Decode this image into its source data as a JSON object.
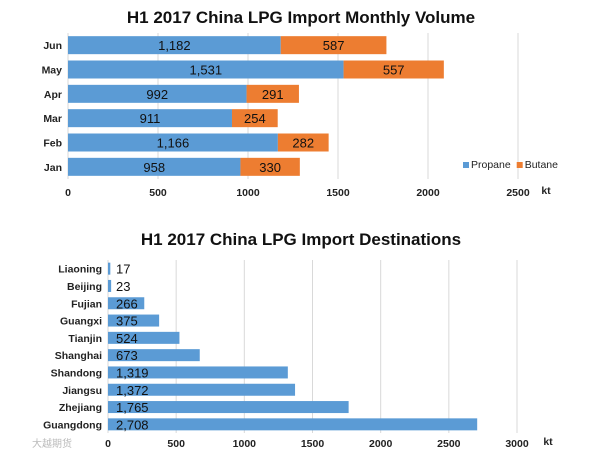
{
  "chart_data": [
    {
      "type": "bar",
      "orientation": "horizontal",
      "stacked": true,
      "title": "H1 2017 China LPG Import Monthly Volume",
      "categories": [
        "Jun",
        "May",
        "Apr",
        "Mar",
        "Feb",
        "Jan"
      ],
      "series": [
        {
          "name": "Propane",
          "values": [
            1182,
            1531,
            992,
            911,
            1166,
            958
          ],
          "labels": [
            "1,182",
            "1,531",
            "992",
            "911",
            "1,166",
            "958"
          ]
        },
        {
          "name": "Butane",
          "values": [
            587,
            557,
            291,
            254,
            282,
            330
          ],
          "labels": [
            "587",
            "557",
            "291",
            "254",
            "282",
            "330"
          ]
        }
      ],
      "xlim": [
        0,
        2500
      ],
      "xticks": [
        "0",
        "500",
        "1000",
        "1500",
        "2000",
        "2500"
      ],
      "xlabel": "kt",
      "legend_position": "right",
      "colors": {
        "Propane": "#5b9bd5",
        "Butane": "#ed7d31"
      },
      "grid": true
    },
    {
      "type": "bar",
      "orientation": "horizontal",
      "title": "H1 2017 China LPG Import Destinations",
      "categories": [
        "Liaoning",
        "Beijing",
        "Fujian",
        "Guangxi",
        "Tianjin",
        "Shanghai",
        "Shandong",
        "Jiangsu",
        "Zhejiang",
        "Guangdong"
      ],
      "values": [
        17,
        23,
        266,
        375,
        524,
        673,
        1319,
        1372,
        1765,
        2708
      ],
      "labels": [
        "17",
        "23",
        "266",
        "375",
        "524",
        "673",
        "1,319",
        "1,372",
        "1,765",
        "2,708"
      ],
      "xlim": [
        0,
        3000
      ],
      "xticks": [
        "0",
        "500",
        "1000",
        "1500",
        "2000",
        "2500",
        "3000"
      ],
      "xlabel": "kt",
      "colors": {
        "bar": "#5b9bd5"
      },
      "grid": true
    }
  ],
  "watermark": "大越期货"
}
